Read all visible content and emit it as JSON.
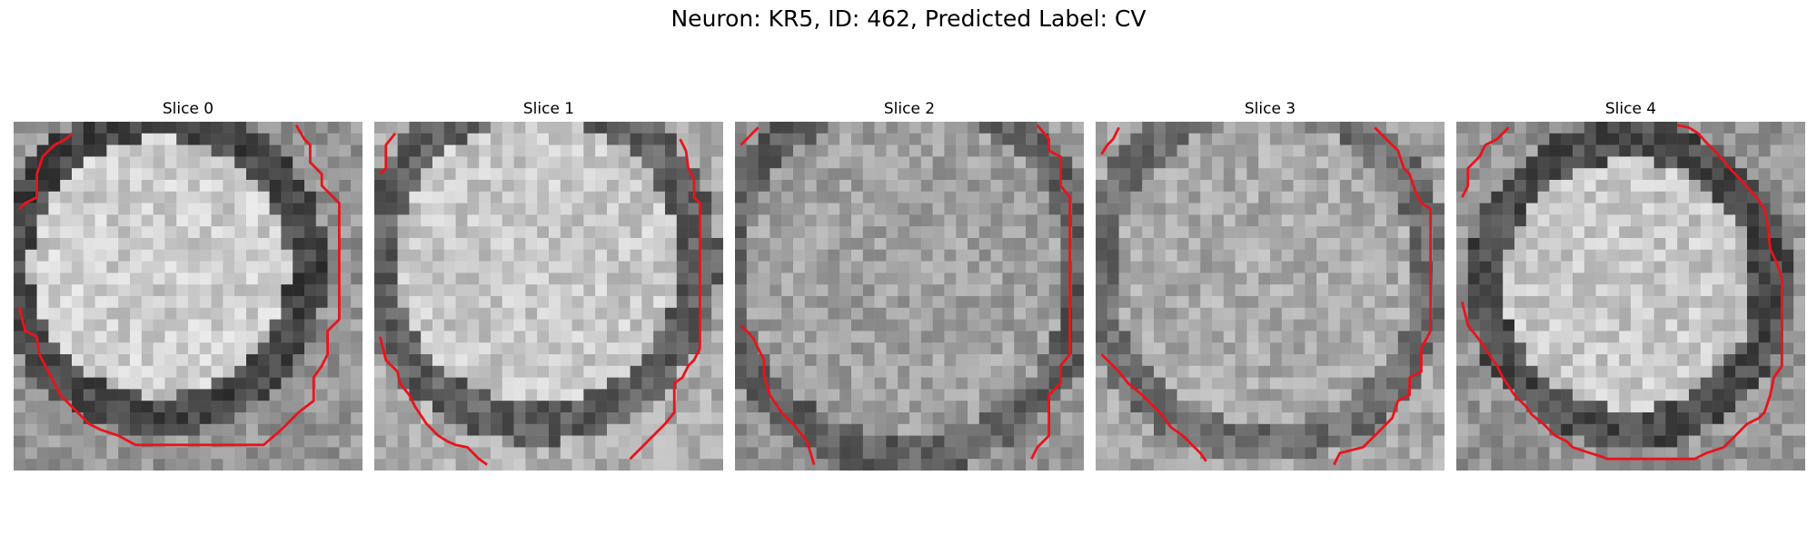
{
  "figure": {
    "title": "Neuron: KR5, ID: 462, Predicted Label: CV"
  },
  "panels": [
    {
      "title": "Slice 0"
    },
    {
      "title": "Slice 1"
    },
    {
      "title": "Slice 2"
    },
    {
      "title": "Slice 3"
    },
    {
      "title": "Slice 4"
    }
  ],
  "colors": {
    "contour": "#e8141c",
    "colormap": "gray"
  }
}
